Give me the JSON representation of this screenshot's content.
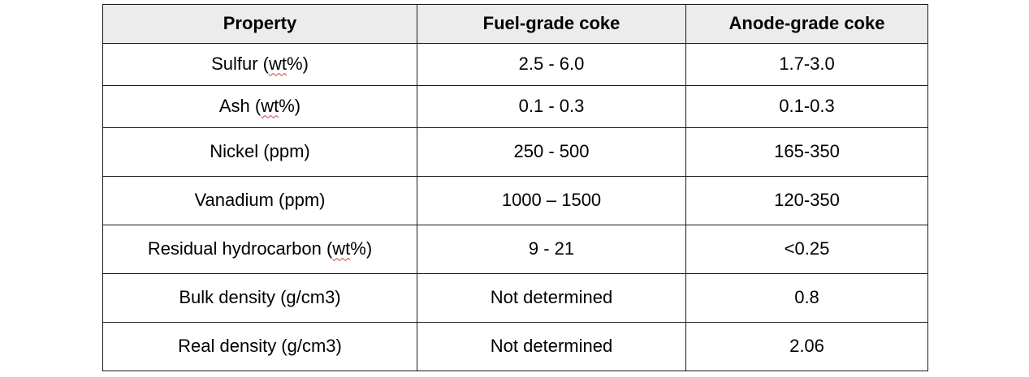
{
  "table": {
    "headers": [
      "Property",
      "Fuel-grade coke",
      "Anode-grade coke"
    ],
    "rows": [
      {
        "property_pre": "Sulfur (",
        "property_unit": "wt",
        "property_post": "%)",
        "fuel": "2.5 - 6.0",
        "anode": "1.7-3.0"
      },
      {
        "property_pre": "Ash (",
        "property_unit": "wt",
        "property_post": "%)",
        "fuel": "0.1 - 0.3",
        "anode": "0.1-0.3"
      },
      {
        "property_pre": "Nickel (ppm)",
        "property_unit": "",
        "property_post": "",
        "fuel": "250 - 500",
        "anode": "165-350"
      },
      {
        "property_pre": "Vanadium (ppm)",
        "property_unit": "",
        "property_post": "",
        "fuel": "1000 – 1500",
        "anode": "120-350"
      },
      {
        "property_pre": "Residual hydrocarbon (",
        "property_unit": "wt",
        "property_post": "%)",
        "fuel": "9 - 21",
        "anode": "<0.25"
      },
      {
        "property_pre": "Bulk density (g/cm3)",
        "property_unit": "",
        "property_post": "",
        "fuel": "Not determined",
        "anode": "0.8"
      },
      {
        "property_pre": "Real density (g/cm3)",
        "property_unit": "",
        "property_post": "",
        "fuel": "Not determined",
        "anode": "2.06"
      }
    ]
  },
  "colors": {
    "header_background": "#ececec",
    "border": "#1a1a1a",
    "spellcheck_underline": "#d23b3b"
  }
}
